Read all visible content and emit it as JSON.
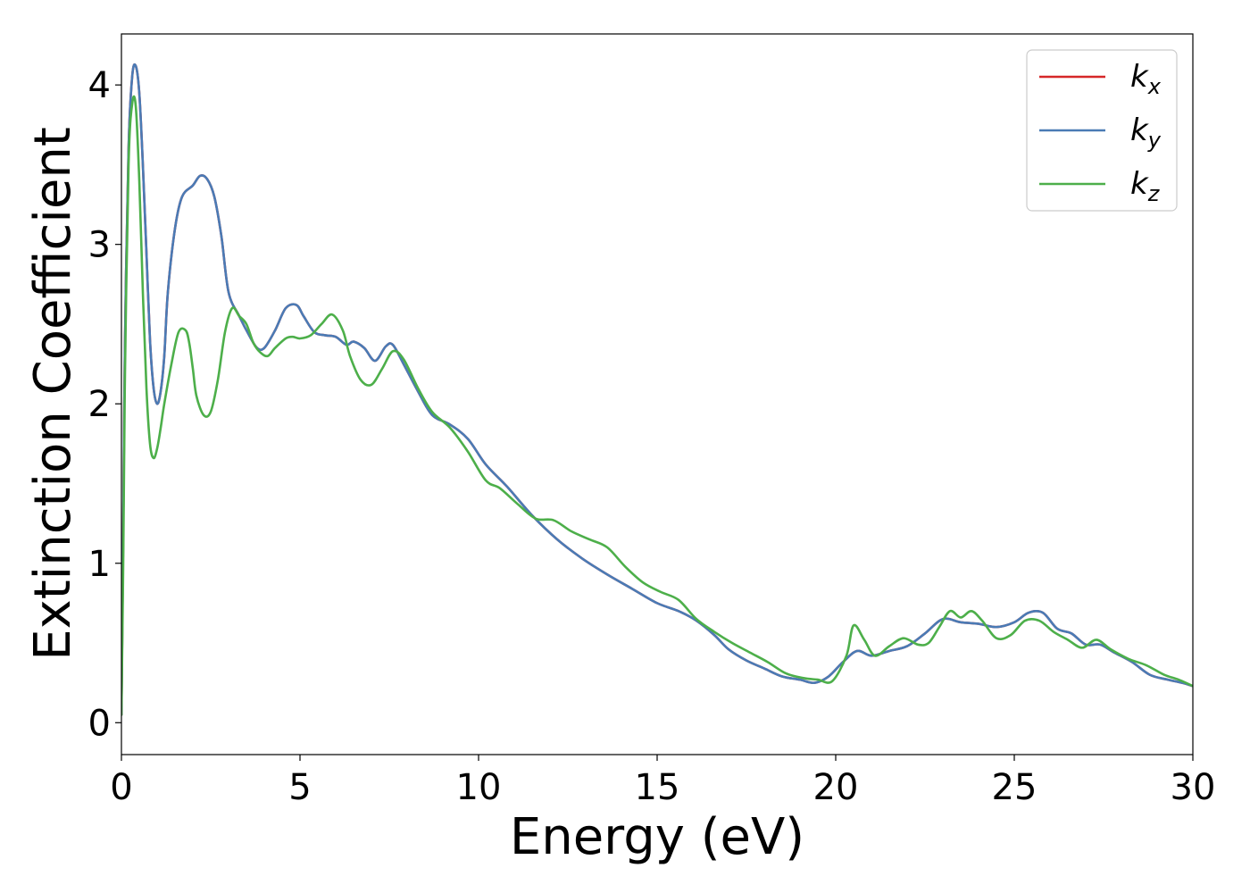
{
  "chart_data": {
    "type": "line",
    "xlabel": "Energy (eV)",
    "ylabel": "Extinction Coefficient",
    "xlim": [
      0,
      30
    ],
    "ylim": [
      -0.2,
      4.32
    ],
    "xticks": [
      0,
      5,
      10,
      15,
      20,
      25,
      30
    ],
    "xtick_labels": [
      "0",
      "5",
      "10",
      "15",
      "20",
      "25",
      "30"
    ],
    "yticks": [
      0,
      1,
      2,
      3,
      4
    ],
    "ytick_labels": [
      "0",
      "1",
      "2",
      "3",
      "4"
    ],
    "grid": false,
    "legend_position": "upper-right",
    "series": [
      {
        "name": "k_x",
        "label_main": "k",
        "label_sub": "x",
        "color": "#d62728",
        "x": [
          0,
          0.05,
          0.1,
          0.2,
          0.3,
          0.4,
          0.5,
          0.6,
          0.7,
          0.8,
          0.9,
          1.0,
          1.1,
          1.2,
          1.3,
          1.5,
          1.7,
          2.0,
          2.2,
          2.4,
          2.6,
          2.8,
          3.0,
          3.3,
          3.6,
          3.8,
          4.0,
          4.3,
          4.6,
          4.9,
          5.1,
          5.4,
          5.7,
          6.0,
          6.3,
          6.5,
          6.8,
          7.1,
          7.4,
          7.6,
          7.9,
          8.3,
          8.7,
          9.2,
          9.7,
          10.2,
          10.8,
          11.5,
          12.2,
          12.9,
          13.6,
          14.3,
          15.0,
          15.6,
          16.1,
          16.6,
          17.0,
          17.5,
          18.0,
          18.5,
          19.0,
          19.4,
          19.8,
          20.2,
          20.6,
          21.0,
          21.5,
          22.0,
          22.5,
          23.0,
          23.5,
          24.0,
          24.5,
          25.0,
          25.4,
          25.8,
          26.2,
          26.6,
          27.0,
          27.4,
          27.8,
          28.3,
          28.8,
          29.3,
          29.7,
          30.0
        ],
        "values": [
          0.05,
          1.2,
          2.4,
          3.6,
          4.05,
          4.12,
          3.95,
          3.5,
          2.95,
          2.4,
          2.1,
          2.0,
          2.08,
          2.3,
          2.7,
          3.1,
          3.3,
          3.37,
          3.43,
          3.41,
          3.3,
          3.05,
          2.7,
          2.55,
          2.42,
          2.35,
          2.35,
          2.46,
          2.6,
          2.62,
          2.55,
          2.45,
          2.43,
          2.42,
          2.37,
          2.39,
          2.35,
          2.27,
          2.36,
          2.37,
          2.25,
          2.08,
          1.93,
          1.87,
          1.78,
          1.62,
          1.48,
          1.3,
          1.15,
          1.03,
          0.93,
          0.84,
          0.75,
          0.7,
          0.64,
          0.55,
          0.46,
          0.39,
          0.34,
          0.29,
          0.27,
          0.25,
          0.29,
          0.38,
          0.45,
          0.42,
          0.45,
          0.48,
          0.56,
          0.65,
          0.63,
          0.62,
          0.6,
          0.63,
          0.69,
          0.69,
          0.59,
          0.56,
          0.49,
          0.49,
          0.44,
          0.38,
          0.3,
          0.27,
          0.25,
          0.23
        ]
      },
      {
        "name": "k_y",
        "label_main": "k",
        "label_sub": "y",
        "color": "#4a7bb5",
        "x": [
          0,
          0.05,
          0.1,
          0.2,
          0.3,
          0.4,
          0.5,
          0.6,
          0.7,
          0.8,
          0.9,
          1.0,
          1.1,
          1.2,
          1.3,
          1.5,
          1.7,
          2.0,
          2.2,
          2.4,
          2.6,
          2.8,
          3.0,
          3.3,
          3.6,
          3.8,
          4.0,
          4.3,
          4.6,
          4.9,
          5.1,
          5.4,
          5.7,
          6.0,
          6.3,
          6.5,
          6.8,
          7.1,
          7.4,
          7.6,
          7.9,
          8.3,
          8.7,
          9.2,
          9.7,
          10.2,
          10.8,
          11.5,
          12.2,
          12.9,
          13.6,
          14.3,
          15.0,
          15.6,
          16.1,
          16.6,
          17.0,
          17.5,
          18.0,
          18.5,
          19.0,
          19.4,
          19.8,
          20.2,
          20.6,
          21.0,
          21.5,
          22.0,
          22.5,
          23.0,
          23.5,
          24.0,
          24.5,
          25.0,
          25.4,
          25.8,
          26.2,
          26.6,
          27.0,
          27.4,
          27.8,
          28.3,
          28.8,
          29.3,
          29.7,
          30.0
        ],
        "values": [
          0.05,
          1.2,
          2.4,
          3.6,
          4.05,
          4.12,
          3.95,
          3.5,
          2.95,
          2.4,
          2.1,
          2.0,
          2.08,
          2.3,
          2.7,
          3.1,
          3.3,
          3.37,
          3.43,
          3.41,
          3.3,
          3.05,
          2.7,
          2.55,
          2.42,
          2.35,
          2.35,
          2.46,
          2.6,
          2.62,
          2.55,
          2.45,
          2.43,
          2.42,
          2.37,
          2.39,
          2.35,
          2.27,
          2.36,
          2.37,
          2.25,
          2.08,
          1.93,
          1.87,
          1.78,
          1.62,
          1.48,
          1.3,
          1.15,
          1.03,
          0.93,
          0.84,
          0.75,
          0.7,
          0.64,
          0.55,
          0.46,
          0.39,
          0.34,
          0.29,
          0.27,
          0.25,
          0.29,
          0.38,
          0.45,
          0.42,
          0.45,
          0.48,
          0.56,
          0.65,
          0.63,
          0.62,
          0.6,
          0.63,
          0.69,
          0.69,
          0.59,
          0.56,
          0.49,
          0.49,
          0.44,
          0.38,
          0.3,
          0.27,
          0.25,
          0.23
        ]
      },
      {
        "name": "k_z",
        "label_main": "k",
        "label_sub": "z",
        "color": "#4daf4a",
        "x": [
          0,
          0.05,
          0.1,
          0.2,
          0.3,
          0.4,
          0.5,
          0.6,
          0.7,
          0.8,
          0.9,
          1.0,
          1.1,
          1.2,
          1.4,
          1.6,
          1.8,
          1.9,
          2.0,
          2.1,
          2.3,
          2.5,
          2.7,
          2.9,
          3.1,
          3.3,
          3.5,
          3.7,
          3.9,
          4.1,
          4.3,
          4.6,
          4.8,
          5.0,
          5.3,
          5.6,
          5.9,
          6.2,
          6.4,
          6.7,
          7.0,
          7.3,
          7.6,
          7.9,
          8.3,
          8.7,
          9.2,
          9.7,
          10.2,
          10.6,
          11.1,
          11.6,
          12.1,
          12.6,
          13.1,
          13.6,
          14.1,
          14.6,
          15.1,
          15.6,
          16.1,
          16.6,
          17.1,
          17.6,
          18.1,
          18.6,
          19.1,
          19.5,
          19.9,
          20.3,
          20.5,
          20.8,
          21.1,
          21.5,
          21.9,
          22.3,
          22.6,
          22.9,
          23.2,
          23.5,
          23.8,
          24.1,
          24.5,
          24.9,
          25.3,
          25.7,
          26.1,
          26.5,
          26.9,
          27.3,
          27.7,
          28.2,
          28.7,
          29.2,
          29.6,
          30.0
        ],
        "values": [
          0.05,
          1.0,
          2.2,
          3.5,
          3.88,
          3.87,
          3.4,
          2.7,
          2.1,
          1.75,
          1.66,
          1.72,
          1.85,
          2.0,
          2.25,
          2.45,
          2.46,
          2.38,
          2.22,
          2.05,
          1.93,
          1.95,
          2.15,
          2.45,
          2.6,
          2.55,
          2.5,
          2.38,
          2.32,
          2.3,
          2.35,
          2.41,
          2.42,
          2.41,
          2.43,
          2.5,
          2.56,
          2.46,
          2.3,
          2.15,
          2.12,
          2.22,
          2.33,
          2.28,
          2.1,
          1.95,
          1.85,
          1.7,
          1.52,
          1.47,
          1.37,
          1.28,
          1.27,
          1.2,
          1.15,
          1.1,
          0.98,
          0.88,
          0.82,
          0.77,
          0.65,
          0.57,
          0.5,
          0.44,
          0.38,
          0.31,
          0.28,
          0.27,
          0.26,
          0.42,
          0.61,
          0.52,
          0.42,
          0.48,
          0.53,
          0.49,
          0.5,
          0.6,
          0.7,
          0.66,
          0.7,
          0.64,
          0.53,
          0.55,
          0.64,
          0.64,
          0.57,
          0.52,
          0.47,
          0.52,
          0.46,
          0.4,
          0.36,
          0.3,
          0.27,
          0.23
        ]
      }
    ]
  }
}
